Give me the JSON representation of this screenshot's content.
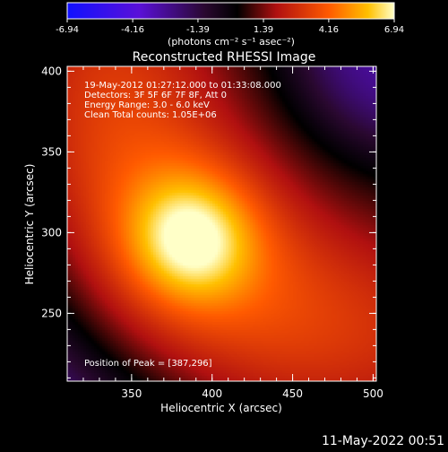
{
  "colorbar": {
    "ticks": [
      "-6.94",
      "-4.16",
      "-1.39",
      "1.39",
      "4.16",
      "6.94"
    ],
    "unit_label": "(photons cm⁻² s⁻¹ asec⁻²)",
    "range": [
      -6.94,
      6.94
    ]
  },
  "chart_data": {
    "type": "heatmap",
    "title": "Reconstructed RHESSI Image",
    "xlabel": "Heliocentric X (arcsec)",
    "ylabel": "Heliocentric Y (arcsec)",
    "xlim": [
      310,
      502
    ],
    "ylim": [
      208,
      403
    ],
    "x_ticks": [
      350,
      400,
      450,
      500
    ],
    "y_ticks": [
      250,
      300,
      350,
      400
    ],
    "peak": {
      "x": 387,
      "y": 296
    },
    "annotations": [
      "19-May-2012 01:27:12.000 to 01:33:08.000",
      "Detectors: 3F 5F 6F 7F 8F, Att 0",
      "Energy Range: 3.0 - 6.0 keV",
      "Clean    Total counts: 1.05E+06"
    ],
    "peak_label": "Position of Peak = [387,296]"
  },
  "footer": {
    "timestamp": "11-May-2022 00:51"
  }
}
